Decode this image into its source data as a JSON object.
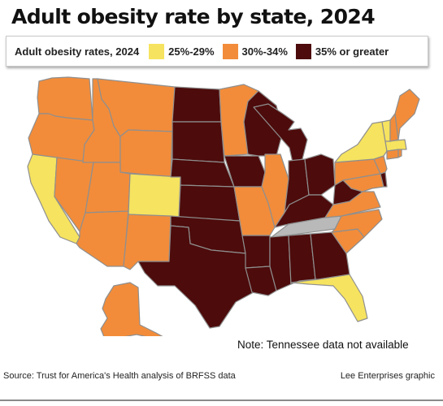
{
  "title": "Adult obesity rate by state, 2024",
  "legend": {
    "title": "Adult obesity rates, 2024",
    "items": [
      {
        "label": "25%-29%",
        "color": "#f6e35f"
      },
      {
        "label": "30%-34%",
        "color": "#f28c3a"
      },
      {
        "label": "35% or greater",
        "color": "#4d0b0b"
      }
    ],
    "no_data_color": "#b9b9b9"
  },
  "note": "Note: Tennessee data not available",
  "source": "Source: Trust for America's Health analysis of BRFSS data",
  "credit": "Lee Enterprises graphic",
  "chart_data": {
    "type": "choropleth",
    "categories": [
      "25%-29%",
      "30%-34%",
      "35% or greater",
      "no data"
    ],
    "states": {
      "WA": "30%-34%",
      "OR": "30%-34%",
      "CA": "25%-29%",
      "NV": "30%-34%",
      "ID": "30%-34%",
      "MT": "30%-34%",
      "WY": "30%-34%",
      "UT": "30%-34%",
      "AZ": "30%-34%",
      "CO": "25%-29%",
      "NM": "30%-34%",
      "ND": "35% or greater",
      "SD": "35% or greater",
      "NE": "35% or greater",
      "KS": "35% or greater",
      "OK": "35% or greater",
      "TX": "35% or greater",
      "MN": "30%-34%",
      "IA": "35% or greater",
      "MO": "30%-34%",
      "AR": "35% or greater",
      "LA": "35% or greater",
      "WI": "35% or greater",
      "IL": "30%-34%",
      "MI": "35% or greater",
      "IN": "35% or greater",
      "OH": "35% or greater",
      "KY": "35% or greater",
      "TN": "no data",
      "MS": "35% or greater",
      "AL": "35% or greater",
      "GA": "35% or greater",
      "FL": "25%-29%",
      "SC": "30%-34%",
      "NC": "30%-34%",
      "VA": "30%-34%",
      "WV": "35% or greater",
      "PA": "30%-34%",
      "NY": "25%-29%",
      "VT": "25%-29%",
      "NH": "30%-34%",
      "ME": "30%-34%",
      "MA": "25%-29%",
      "RI": "30%-34%",
      "CT": "30%-34%",
      "NJ": "30%-34%",
      "DE": "35% or greater",
      "MD": "30%-34%",
      "AK": "30%-34%",
      "HI": "25%-29%"
    }
  }
}
